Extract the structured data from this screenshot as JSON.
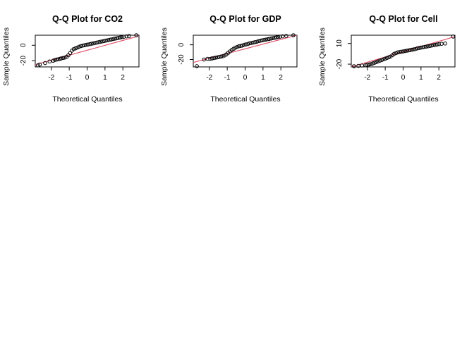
{
  "chart_data": [
    {
      "type": "scatter",
      "title": "Q-Q Plot for CO2",
      "xlabel": "Theoretical Quantiles",
      "ylabel": "Sample Quantiles",
      "xlim": [
        -2.9,
        2.9
      ],
      "ylim": [
        -28,
        13
      ],
      "xticks": [
        -2,
        -1,
        0,
        1,
        2
      ],
      "yticks": [
        -20,
        0
      ],
      "point_color": "#000000",
      "line_color": "#DF536B",
      "reference_line": {
        "x": [
          -2.9,
          2.9
        ],
        "y": [
          -25.0,
          12.0
        ]
      },
      "series": [
        {
          "x": [
            -2.75,
            -2.65,
            -2.35,
            -2.1,
            -1.9,
            -1.8,
            -1.7,
            -1.6,
            -1.5,
            -1.45,
            -1.35,
            -1.25,
            -1.15,
            -1.05,
            -0.95,
            -0.85,
            -0.75,
            -0.65,
            -0.55,
            -0.45,
            -0.35,
            -0.25,
            -0.15,
            -0.05,
            0.05,
            0.15,
            0.25,
            0.35,
            0.45,
            0.55,
            0.65,
            0.75,
            0.85,
            0.95,
            1.05,
            1.15,
            1.25,
            1.35,
            1.45,
            1.55,
            1.65,
            1.75,
            1.85,
            1.95,
            2.05,
            2.2,
            2.35,
            2.75
          ],
          "y": [
            -26,
            -25,
            -23,
            -21,
            -20,
            -19,
            -18.5,
            -18,
            -17.5,
            -17,
            -16.5,
            -16,
            -15,
            -13,
            -10,
            -7,
            -5,
            -4,
            -3,
            -2,
            -1,
            -0.5,
            0,
            0.5,
            1,
            1.5,
            2,
            2.5,
            3,
            3.5,
            4,
            4.5,
            5,
            5.5,
            6,
            6.5,
            7,
            7.5,
            8,
            8.5,
            9,
            9.5,
            10,
            10.5,
            11,
            11.5,
            12,
            13
          ]
        }
      ]
    },
    {
      "type": "scatter",
      "title": "Q-Q Plot for GDP",
      "xlabel": "Theoretical Quantiles",
      "ylabel": "Sample Quantiles",
      "xlim": [
        -2.9,
        2.9
      ],
      "ylim": [
        -30,
        13
      ],
      "xticks": [
        -2,
        -1,
        0,
        1,
        2
      ],
      "yticks": [
        -20,
        0
      ],
      "point_color": "#000000",
      "line_color": "#DF536B",
      "reference_line": {
        "x": [
          -2.9,
          2.9
        ],
        "y": [
          -24.0,
          13.0
        ]
      },
      "series": [
        {
          "x": [
            -2.7,
            -2.3,
            -2.1,
            -1.95,
            -1.85,
            -1.75,
            -1.65,
            -1.55,
            -1.45,
            -1.35,
            -1.25,
            -1.15,
            -1.05,
            -0.95,
            -0.85,
            -0.75,
            -0.65,
            -0.55,
            -0.45,
            -0.35,
            -0.25,
            -0.15,
            -0.05,
            0.05,
            0.15,
            0.25,
            0.35,
            0.45,
            0.55,
            0.65,
            0.75,
            0.85,
            0.95,
            1.05,
            1.15,
            1.25,
            1.35,
            1.45,
            1.55,
            1.65,
            1.75,
            1.85,
            1.95,
            2.1,
            2.3,
            2.7
          ],
          "y": [
            -29,
            -20,
            -19,
            -19,
            -18.5,
            -18,
            -17.5,
            -17,
            -16.5,
            -16,
            -15.5,
            -14.5,
            -13,
            -11,
            -9,
            -7,
            -5.5,
            -4,
            -3,
            -2,
            -1.5,
            -1,
            0,
            0.5,
            1,
            2,
            2.5,
            3,
            3.5,
            4,
            5,
            5.5,
            6,
            6.5,
            7,
            7.5,
            8,
            8.5,
            9,
            9.5,
            10,
            10.5,
            11,
            11.5,
            12,
            13
          ]
        }
      ]
    },
    {
      "type": "scatter",
      "title": "Q-Q Plot for Cell",
      "xlabel": "Theoretical Quantiles",
      "ylabel": "Sample Quantiles",
      "xlim": [
        -2.9,
        2.9
      ],
      "ylim": [
        -24,
        22
      ],
      "xticks": [
        -2,
        -1,
        0,
        1,
        2
      ],
      "yticks": [
        -20,
        10
      ],
      "point_color": "#000000",
      "line_color": "#DF536B",
      "reference_line": {
        "x": [
          -2.9,
          2.9
        ],
        "y": [
          -24.0,
          20.0
        ]
      },
      "series": [
        {
          "x": [
            -2.75,
            -2.5,
            -2.3,
            -2.1,
            -2.0,
            -1.9,
            -1.8,
            -1.7,
            -1.6,
            -1.5,
            -1.4,
            -1.3,
            -1.2,
            -1.1,
            -1.0,
            -0.9,
            -0.8,
            -0.7,
            -0.6,
            -0.5,
            -0.4,
            -0.3,
            -0.2,
            -0.1,
            0.0,
            0.1,
            0.2,
            0.3,
            0.4,
            0.5,
            0.6,
            0.7,
            0.8,
            0.9,
            1.0,
            1.1,
            1.2,
            1.3,
            1.4,
            1.5,
            1.6,
            1.7,
            1.8,
            1.9,
            2.0,
            2.15,
            2.35,
            2.8
          ],
          "y": [
            -23,
            -22.5,
            -22,
            -21.5,
            -21,
            -20.5,
            -20,
            -19,
            -18,
            -17,
            -16,
            -15,
            -14,
            -13,
            -12,
            -11,
            -10,
            -9,
            -7,
            -5,
            -4,
            -3,
            -2.5,
            -2,
            -1.5,
            -1,
            -0.5,
            0,
            0.5,
            1,
            1.5,
            2,
            3,
            3.5,
            4,
            4.5,
            5,
            5.5,
            6,
            6.5,
            7,
            7.5,
            8,
            8.5,
            9,
            9.5,
            10,
            20
          ]
        }
      ]
    }
  ]
}
